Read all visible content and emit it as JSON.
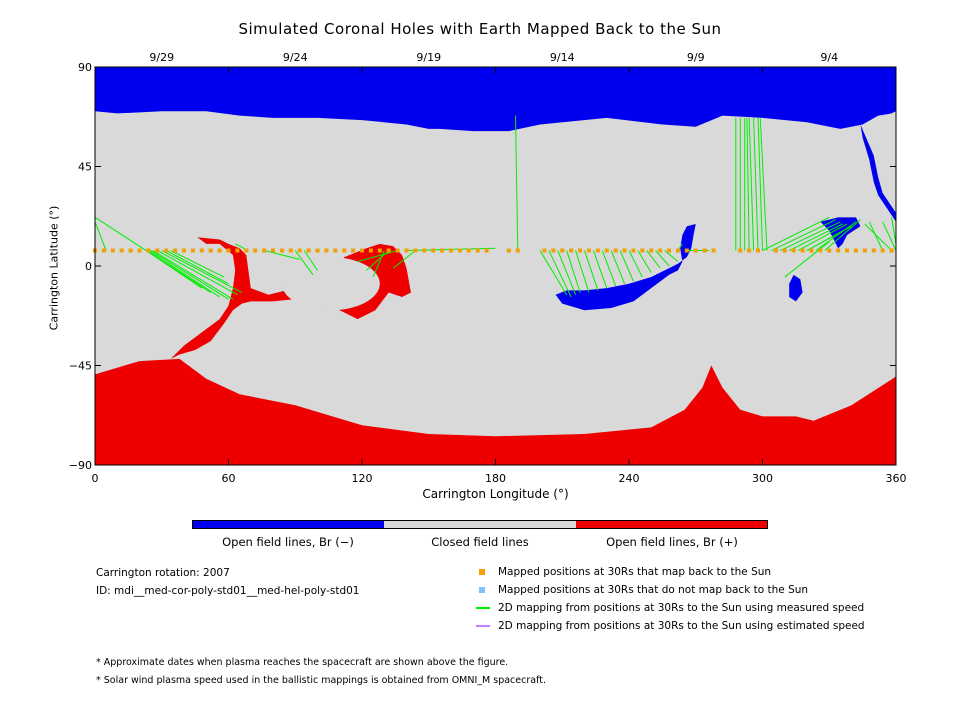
{
  "chart_data": {
    "type": "heatmap",
    "title": "Simulated Coronal Holes with Earth Mapped Back to the Sun",
    "xlabel": "Carrington Longitude (°)",
    "ylabel": "Carrington Latitude (°)",
    "xlim": [
      0,
      360
    ],
    "ylim": [
      -90,
      90
    ],
    "xticks": [
      "0",
      "60",
      "120",
      "180",
      "240",
      "300",
      "360"
    ],
    "yticks": [
      "90",
      "45",
      "0",
      "-45",
      "-90"
    ],
    "top_date_ticks": [
      {
        "label": "9/29",
        "lon": 30
      },
      {
        "label": "9/24",
        "lon": 90
      },
      {
        "label": "9/19",
        "lon": 150
      },
      {
        "label": "9/14",
        "lon": 210
      },
      {
        "label": "9/9",
        "lon": 270
      },
      {
        "label": "9/4",
        "lon": 330
      }
    ],
    "classes": [
      {
        "name": "Open field lines, Br (−)",
        "color": "#0000ee"
      },
      {
        "name": "Closed field lines",
        "color": "#d9d9d9"
      },
      {
        "name": "Open field lines, Br (+)",
        "color": "#ee0000"
      }
    ],
    "negative_polar_hole_boundary": [
      [
        0,
        70
      ],
      [
        10,
        69
      ],
      [
        30,
        70
      ],
      [
        50,
        70
      ],
      [
        65,
        68
      ],
      [
        80,
        67
      ],
      [
        100,
        67
      ],
      [
        120,
        66
      ],
      [
        140,
        64
      ],
      [
        150,
        62
      ],
      [
        155,
        62
      ],
      [
        170,
        61
      ],
      [
        186,
        61
      ],
      [
        200,
        64
      ],
      [
        230,
        67
      ],
      [
        255,
        64
      ],
      [
        270,
        63
      ],
      [
        282,
        68
      ],
      [
        300,
        67
      ],
      [
        320,
        65
      ],
      [
        335,
        62
      ],
      [
        345,
        64
      ],
      [
        352,
        68
      ],
      [
        358,
        69
      ],
      [
        360,
        70
      ]
    ],
    "positive_polar_hole_boundary": [
      [
        0,
        -49
      ],
      [
        20,
        -43
      ],
      [
        38,
        -42
      ],
      [
        50,
        -51
      ],
      [
        65,
        -58
      ],
      [
        90,
        -63
      ],
      [
        120,
        -72
      ],
      [
        150,
        -76
      ],
      [
        180,
        -77
      ],
      [
        220,
        -76
      ],
      [
        250,
        -73
      ],
      [
        265,
        -65
      ],
      [
        273,
        -55
      ],
      [
        277,
        -45
      ],
      [
        282,
        -55
      ],
      [
        290,
        -65
      ],
      [
        300,
        -68
      ],
      [
        315,
        -68
      ],
      [
        323,
        -70
      ],
      [
        340,
        -63
      ],
      [
        360,
        -50
      ]
    ],
    "mapped_positions": {
      "latitude": 7,
      "color": "#f0a000",
      "longitudes": [
        0,
        4,
        8,
        12,
        16,
        20,
        24,
        28,
        32,
        36,
        40,
        44,
        48,
        52,
        56,
        60,
        64,
        68,
        72,
        76,
        80,
        84,
        88,
        92,
        96,
        100,
        104,
        108,
        112,
        116,
        120,
        124,
        128,
        132,
        136,
        140,
        144,
        148,
        152,
        156,
        160,
        164,
        168,
        172,
        176,
        186,
        190,
        202,
        206,
        210,
        214,
        218,
        222,
        226,
        230,
        234,
        238,
        242,
        246,
        250,
        254,
        258,
        262,
        266,
        270,
        274,
        278,
        290,
        294,
        298,
        306,
        310,
        314,
        318,
        322,
        326,
        330,
        334,
        338,
        342,
        346,
        350,
        354,
        358
      ]
    },
    "field_line_mappings": [
      {
        "from": [
          0,
          7
        ],
        "to": [
          0,
          23
        ]
      },
      {
        "from": [
          5,
          7
        ],
        "to": [
          0,
          20
        ]
      },
      {
        "from": [
          23,
          7
        ],
        "to": [
          0,
          22
        ]
      },
      {
        "from": [
          23,
          7
        ],
        "to": [
          48,
          -10
        ]
      },
      {
        "from": [
          23,
          7
        ],
        "to": [
          52,
          -12
        ]
      },
      {
        "from": [
          24,
          7
        ],
        "to": [
          56,
          -14
        ]
      },
      {
        "from": [
          25,
          7
        ],
        "to": [
          60,
          -15
        ]
      },
      {
        "from": [
          26,
          7
        ],
        "to": [
          62,
          -15
        ]
      },
      {
        "from": [
          28,
          7
        ],
        "to": [
          64,
          -13
        ]
      },
      {
        "from": [
          30,
          7
        ],
        "to": [
          66,
          -12
        ]
      },
      {
        "from": [
          32,
          7
        ],
        "to": [
          60,
          -8
        ]
      },
      {
        "from": [
          34,
          7
        ],
        "to": [
          58,
          -5
        ]
      },
      {
        "from": [
          69,
          7
        ],
        "to": [
          63,
          10
        ]
      },
      {
        "from": [
          90,
          7
        ],
        "to": [
          98,
          -4
        ]
      },
      {
        "from": [
          94,
          7
        ],
        "to": [
          100,
          -2
        ]
      },
      {
        "from": [
          76,
          7
        ],
        "to": [
          92,
          3
        ]
      },
      {
        "from": [
          130,
          7
        ],
        "to": [
          125,
          -5
        ]
      },
      {
        "from": [
          132,
          7
        ],
        "to": [
          122,
          -2
        ]
      },
      {
        "from": [
          136,
          7
        ],
        "to": [
          118,
          2
        ]
      },
      {
        "from": [
          140,
          7
        ],
        "to": [
          180,
          8
        ]
      },
      {
        "from": [
          144,
          7
        ],
        "to": [
          134,
          -1
        ]
      },
      {
        "from": [
          190,
          7
        ],
        "to": [
          189,
          68
        ]
      },
      {
        "from": [
          200,
          7
        ],
        "to": [
          212,
          -13
        ]
      },
      {
        "from": [
          204,
          7
        ],
        "to": [
          214,
          -14
        ]
      },
      {
        "from": [
          208,
          7
        ],
        "to": [
          216,
          -13
        ]
      },
      {
        "from": [
          212,
          7
        ],
        "to": [
          218,
          -12
        ]
      },
      {
        "from": [
          216,
          7
        ],
        "to": [
          222,
          -12
        ]
      },
      {
        "from": [
          220,
          7
        ],
        "to": [
          226,
          -11
        ]
      },
      {
        "from": [
          224,
          7
        ],
        "to": [
          230,
          -10
        ]
      },
      {
        "from": [
          228,
          7
        ],
        "to": [
          234,
          -9
        ]
      },
      {
        "from": [
          232,
          7
        ],
        "to": [
          238,
          -8
        ]
      },
      {
        "from": [
          236,
          7
        ],
        "to": [
          242,
          -7
        ]
      },
      {
        "from": [
          240,
          7
        ],
        "to": [
          246,
          -5
        ]
      },
      {
        "from": [
          244,
          7
        ],
        "to": [
          250,
          -3
        ]
      },
      {
        "from": [
          248,
          7
        ],
        "to": [
          254,
          -1
        ]
      },
      {
        "from": [
          252,
          7
        ],
        "to": [
          258,
          0
        ]
      },
      {
        "from": [
          256,
          7
        ],
        "to": [
          262,
          2
        ]
      },
      {
        "from": [
          262,
          7
        ],
        "to": [
          264,
          10
        ]
      },
      {
        "from": [
          266,
          7
        ],
        "to": [
          276,
          7
        ]
      },
      {
        "from": [
          288,
          7
        ],
        "to": [
          288,
          67
        ]
      },
      {
        "from": [
          290,
          7
        ],
        "to": [
          290,
          67
        ]
      },
      {
        "from": [
          292,
          7
        ],
        "to": [
          292,
          67
        ]
      },
      {
        "from": [
          294,
          7
        ],
        "to": [
          293,
          67
        ]
      },
      {
        "from": [
          296,
          7
        ],
        "to": [
          294,
          67
        ]
      },
      {
        "from": [
          298,
          7
        ],
        "to": [
          296,
          67
        ]
      },
      {
        "from": [
          300,
          7
        ],
        "to": [
          298,
          67
        ]
      },
      {
        "from": [
          302,
          7
        ],
        "to": [
          299,
          67
        ]
      },
      {
        "from": [
          300,
          7
        ],
        "to": [
          330,
          22
        ]
      },
      {
        "from": [
          304,
          7
        ],
        "to": [
          333,
          21
        ]
      },
      {
        "from": [
          308,
          7
        ],
        "to": [
          335,
          20
        ]
      },
      {
        "from": [
          312,
          7
        ],
        "to": [
          336,
          19
        ]
      },
      {
        "from": [
          316,
          7
        ],
        "to": [
          338,
          19
        ]
      },
      {
        "from": [
          320,
          7
        ],
        "to": [
          340,
          18
        ]
      },
      {
        "from": [
          324,
          7
        ],
        "to": [
          342,
          20
        ]
      },
      {
        "from": [
          328,
          7
        ],
        "to": [
          344,
          21
        ]
      },
      {
        "from": [
          320,
          7
        ],
        "to": [
          340,
          18
        ]
      },
      {
        "from": [
          310,
          -5
        ],
        "to": [
          330,
          11
        ]
      },
      {
        "from": [
          358,
          7
        ],
        "to": [
          346,
          19
        ]
      },
      {
        "from": [
          354,
          7
        ],
        "to": [
          348,
          20
        ]
      },
      {
        "from": [
          360,
          7
        ],
        "to": [
          354,
          20
        ]
      },
      {
        "from": [
          360,
          10
        ],
        "to": [
          358,
          22
        ]
      }
    ]
  },
  "colorbar": {
    "segments": [
      {
        "label": "Open field lines, Br (−)",
        "color": "#0000ee"
      },
      {
        "label": "Closed field lines",
        "color": "#d9d9d9"
      },
      {
        "label": "Open field lines, Br (+)",
        "color": "#ee0000"
      }
    ]
  },
  "info": {
    "rotation": "Carrington rotation: 2007",
    "id": "ID: mdi__med-cor-poly-std01__med-hel-poly-std01"
  },
  "legend": {
    "items": [
      {
        "label": "Mapped positions at 30Rs that map back to the Sun",
        "color": "#f0a000",
        "marker": "square"
      },
      {
        "label": "Mapped positions at 30Rs that do not map back to the Sun",
        "color": "#80c0ff",
        "marker": "square"
      },
      {
        "label": "2D mapping from positions at 30Rs to the Sun using measured speed",
        "color": "#00ee00",
        "marker": "line"
      },
      {
        "label": "2D mapping from positions at 30Rs to the Sun using estimated speed",
        "color": "#c080ff",
        "marker": "line"
      }
    ]
  },
  "notes": [
    "* Approximate dates when plasma reaches the spacecraft are shown above the figure.",
    "* Solar wind plasma speed used in the ballistic mappings is obtained from OMNI_M spacecraft."
  ]
}
